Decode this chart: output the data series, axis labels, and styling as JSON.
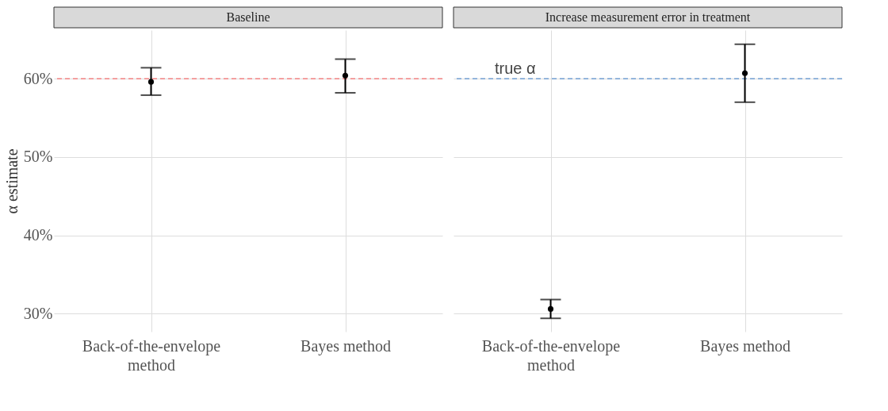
{
  "chart_data": [
    {
      "type": "scatter",
      "title": "Baseline",
      "ylabel": "α estimate",
      "categories": [
        "Back-of-the-envelope\nmethod",
        "Bayes method"
      ],
      "series": [
        {
          "color": "#000000",
          "values": [
            59.6,
            60.4
          ],
          "errors": [
            [
              57.9,
              61.4
            ],
            [
              58.2,
              62.5
            ]
          ]
        }
      ],
      "ylim": [
        27.7,
        66.2
      ],
      "yticks": [
        {
          "value": 30,
          "label": "30%"
        },
        {
          "value": 40,
          "label": "40%"
        },
        {
          "value": 50,
          "label": "50%"
        },
        {
          "value": 60,
          "label": "60%"
        }
      ],
      "grid": true,
      "marker": "circle",
      "ref_lines": [
        {
          "axis": "y",
          "value": 60,
          "color": "#f08080",
          "line_style": "dashed"
        }
      ]
    },
    {
      "type": "scatter",
      "title": "Increase measurement error in treatment",
      "categories": [
        "Back-of-the-envelope\nmethod",
        "Bayes method"
      ],
      "series": [
        {
          "color": "#000000",
          "values": [
            30.6,
            60.7
          ],
          "errors": [
            [
              29.4,
              31.8
            ],
            [
              57.0,
              64.4
            ]
          ]
        }
      ],
      "ylim": [
        27.7,
        66.2
      ],
      "yticks": [
        30,
        40,
        50,
        60
      ],
      "grid": true,
      "marker": "circle",
      "tick_labels": "x",
      "ref_lines": [
        {
          "axis": "y",
          "value": 60,
          "label": "true α",
          "color": "#6f9ccf",
          "line_style": "dashed"
        }
      ]
    }
  ]
}
